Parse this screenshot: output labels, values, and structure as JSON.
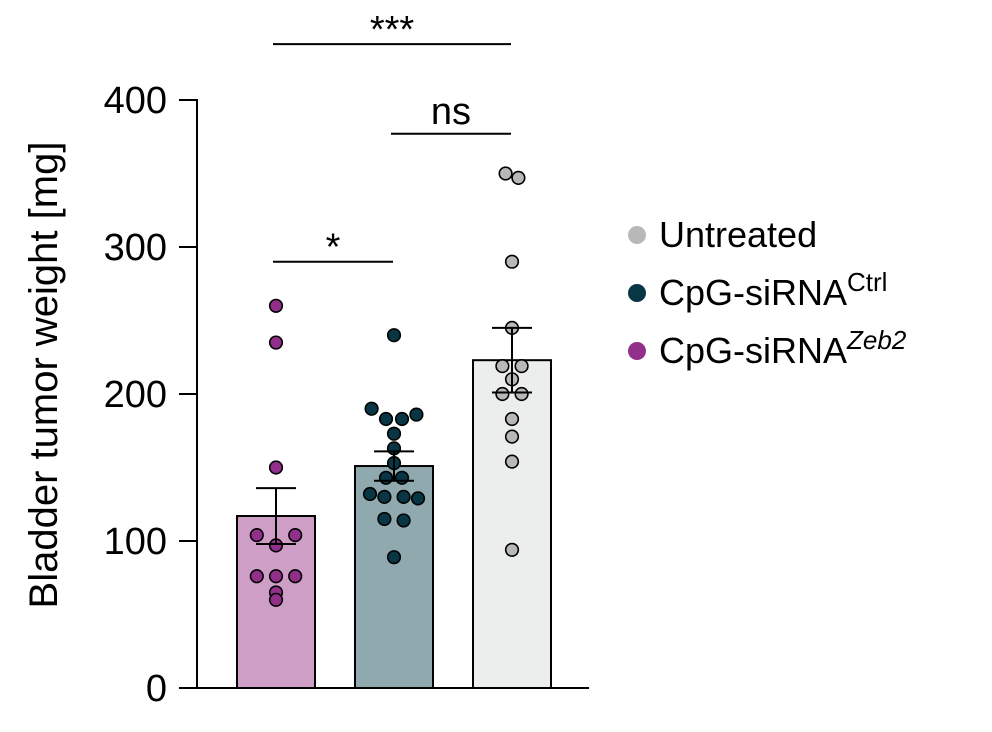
{
  "chart_data": {
    "type": "bar",
    "title": "",
    "xlabel": "",
    "ylabel": "Bladder tumor weight [mg]",
    "ylim": [
      0,
      400
    ],
    "yticks": [
      0,
      100,
      200,
      300,
      400
    ],
    "legend_position": "right",
    "series": [
      {
        "key": "zeb2",
        "legend_base": "CpG-siRNA",
        "legend_sup": "Zeb2",
        "legend_sup_italic": true,
        "mean": 117,
        "sem": 19,
        "bar_color": "#cf9ec6",
        "dot_color": "#912f8b",
        "points": [
          {
            "dx": 0,
            "y": 260
          },
          {
            "dx": 0,
            "y": 235
          },
          {
            "dx": 0,
            "y": 150
          },
          {
            "dx": -0.6,
            "y": 104
          },
          {
            "dx": 0.6,
            "y": 104
          },
          {
            "dx": 0,
            "y": 97
          },
          {
            "dx": -0.6,
            "y": 76
          },
          {
            "dx": 0,
            "y": 76
          },
          {
            "dx": 0.6,
            "y": 76
          },
          {
            "dx": 0,
            "y": 65
          },
          {
            "dx": 0,
            "y": 60
          }
        ]
      },
      {
        "key": "ctrl",
        "legend_base": "CpG-siRNA",
        "legend_sup": "Ctrl",
        "legend_sup_italic": false,
        "mean": 151,
        "sem": 10,
        "bar_color": "#8fa9ae",
        "dot_color": "#083645",
        "points": [
          {
            "dx": 0,
            "y": 240
          },
          {
            "dx": -0.7,
            "y": 190
          },
          {
            "dx": -0.25,
            "y": 183
          },
          {
            "dx": 0.25,
            "y": 183
          },
          {
            "dx": 0.7,
            "y": 186
          },
          {
            "dx": 0,
            "y": 173
          },
          {
            "dx": 0,
            "y": 163
          },
          {
            "dx": 0,
            "y": 153
          },
          {
            "dx": -0.25,
            "y": 143
          },
          {
            "dx": 0.25,
            "y": 143
          },
          {
            "dx": -0.75,
            "y": 132
          },
          {
            "dx": -0.3,
            "y": 130
          },
          {
            "dx": 0.3,
            "y": 130
          },
          {
            "dx": 0.75,
            "y": 129
          },
          {
            "dx": -0.3,
            "y": 115
          },
          {
            "dx": 0.3,
            "y": 114
          },
          {
            "dx": 0,
            "y": 89
          }
        ]
      },
      {
        "key": "untreated",
        "legend_base": "Untreated",
        "legend_sup": "",
        "legend_sup_italic": false,
        "mean": 223,
        "sem": 22,
        "bar_color": "#eceded",
        "dot_color": "#b8b8b8",
        "points": [
          {
            "dx": -0.2,
            "y": 350
          },
          {
            "dx": 0.2,
            "y": 347
          },
          {
            "dx": 0,
            "y": 290
          },
          {
            "dx": 0,
            "y": 245
          },
          {
            "dx": -0.3,
            "y": 219
          },
          {
            "dx": 0.3,
            "y": 219
          },
          {
            "dx": -0.3,
            "y": 200
          },
          {
            "dx": 0.3,
            "y": 200
          },
          {
            "dx": 0,
            "y": 210
          },
          {
            "dx": 0,
            "y": 183
          },
          {
            "dx": 0,
            "y": 171
          },
          {
            "dx": 0,
            "y": 154
          },
          {
            "dx": 0,
            "y": 94
          }
        ]
      }
    ],
    "legend_order": [
      "untreated",
      "ctrl",
      "zeb2"
    ],
    "significance": [
      {
        "from": 0,
        "to": 1,
        "label": "*",
        "y": 290
      },
      {
        "from": 1,
        "to": 2,
        "label": "ns",
        "y": 377
      },
      {
        "from": 0,
        "to": 2,
        "label": "***",
        "y": 438
      }
    ]
  }
}
